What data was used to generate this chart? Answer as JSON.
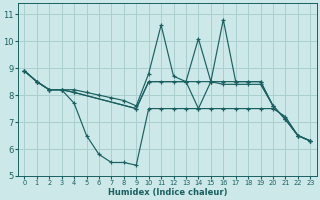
{
  "xlabel": "Humidex (Indice chaleur)",
  "bg_color": "#cce8e8",
  "grid_color": "#aacfcf",
  "line_color": "#1a6060",
  "xlim": [
    -0.5,
    23.5
  ],
  "ylim": [
    5,
    11.4
  ],
  "yticks": [
    5,
    6,
    7,
    8,
    9,
    10,
    11
  ],
  "xticks": [
    0,
    1,
    2,
    3,
    4,
    5,
    6,
    7,
    8,
    9,
    10,
    11,
    12,
    13,
    14,
    15,
    16,
    17,
    18,
    19,
    20,
    21,
    22,
    23
  ],
  "series": [
    {
      "x": [
        0,
        1,
        2,
        3,
        4,
        5,
        6,
        7,
        8,
        9,
        10,
        11,
        12,
        13,
        14,
        15,
        16,
        17,
        18,
        19,
        20,
        21,
        22,
        23
      ],
      "y": [
        8.9,
        8.5,
        8.2,
        8.2,
        7.7,
        6.5,
        5.8,
        5.5,
        5.5,
        5.4,
        7.5,
        7.5,
        7.5,
        7.5,
        7.5,
        7.5,
        7.5,
        7.5,
        7.5,
        7.5,
        7.5,
        7.2,
        6.5,
        6.3
      ]
    },
    {
      "x": [
        0,
        1,
        2,
        3,
        4,
        5,
        6,
        7,
        8,
        9,
        10,
        11,
        12,
        13,
        14,
        15,
        16,
        17,
        18,
        19,
        20,
        21,
        22,
        23
      ],
      "y": [
        8.9,
        8.5,
        8.2,
        8.2,
        8.2,
        8.1,
        8.0,
        7.9,
        7.8,
        7.6,
        8.8,
        10.6,
        8.7,
        8.5,
        7.5,
        8.5,
        8.5,
        8.5,
        8.5,
        8.5,
        7.6,
        7.1,
        6.5,
        6.3
      ]
    },
    {
      "x": [
        0,
        1,
        2,
        3,
        4,
        9,
        10,
        13,
        14,
        15,
        16,
        17,
        18,
        19,
        20,
        21,
        22,
        23
      ],
      "y": [
        8.9,
        8.5,
        8.2,
        8.2,
        8.1,
        7.5,
        8.5,
        8.5,
        10.1,
        8.5,
        10.8,
        8.5,
        8.5,
        8.5,
        7.6,
        7.1,
        6.5,
        6.3
      ]
    },
    {
      "x": [
        0,
        1,
        2,
        3,
        4,
        9,
        10,
        11,
        12,
        13,
        14,
        15,
        16,
        17,
        18,
        19,
        20,
        21,
        22,
        23
      ],
      "y": [
        8.9,
        8.5,
        8.2,
        8.2,
        8.1,
        7.5,
        8.5,
        8.5,
        8.5,
        8.5,
        8.5,
        8.5,
        8.4,
        8.4,
        8.4,
        8.4,
        7.6,
        7.1,
        6.5,
        6.3
      ]
    }
  ]
}
